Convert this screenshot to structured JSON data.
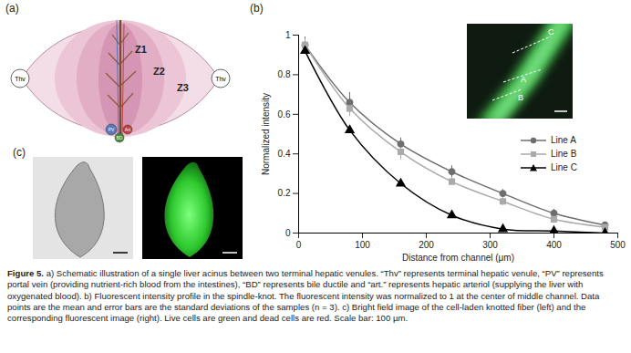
{
  "panels": {
    "a": {
      "label": "(a)",
      "labels": {
        "thv_left": "Thv",
        "thv_right": "Thv",
        "pv": "PV",
        "bd": "BD",
        "art": "Art",
        "z1": "Z1",
        "z2": "Z2",
        "z3": "Z3"
      }
    },
    "b": {
      "label": "(b)",
      "inset_lines": [
        "A",
        "B",
        "C"
      ]
    },
    "c": {
      "label": "(c)"
    }
  },
  "chart_data": {
    "type": "line",
    "x_label": "Distance from channel (μm)",
    "y_label": "Normalized intensity",
    "x": [
      10,
      80,
      160,
      240,
      320,
      400,
      480
    ],
    "series": [
      {
        "name": "Line A",
        "color": "#6e6e6e",
        "marker": "circle",
        "values": [
          0.95,
          0.66,
          0.45,
          0.31,
          0.2,
          0.1,
          0.04
        ],
        "errors": [
          0.04,
          0.05,
          0.03,
          0.03,
          0.02,
          0.02,
          0.01
        ]
      },
      {
        "name": "Line B",
        "color": "#aaaaaa",
        "marker": "square",
        "values": [
          0.95,
          0.63,
          0.41,
          0.26,
          0.16,
          0.07,
          0.03
        ],
        "errors": [
          0.03,
          0.04,
          0.04,
          0.02,
          0.02,
          0.02,
          0.01
        ]
      },
      {
        "name": "Line C",
        "color": "#000000",
        "marker": "triangle",
        "values": [
          0.92,
          0.52,
          0.25,
          0.09,
          0.02,
          0.01,
          0.0
        ]
      }
    ],
    "xlim": [
      0,
      500
    ],
    "xticks": [
      0,
      100,
      200,
      300,
      400,
      500
    ],
    "ylim": [
      0,
      1
    ],
    "yticks": [
      0,
      0.2,
      0.4,
      0.6,
      0.8,
      1
    ],
    "legend": "right"
  },
  "caption": {
    "lead": "Figure 5.",
    "text": "a) Schematic illustration of a single liver acinus between two terminal hepatic venules. “Thv” represents terminal hepatic venule, “PV” represents portal vein (providing nutrient-rich blood from the intestines), “BD” represents bile ductile and “art.” represents hepatic arteriol (supplying the liver with oxygenated blood). b) Fluorescent intensity profile in the spindle-knot. The fluorescent intensity was normalized to 1 at the center of middle channel. Data points are the mean and error bars are the standard deviations of the samples (n = 3). c) Bright field image of the cell-laden knotted fiber (left) and the corresponding fluorescent image (right). Live cells are green and dead cells are red. Scale bar: 100 µm."
  }
}
